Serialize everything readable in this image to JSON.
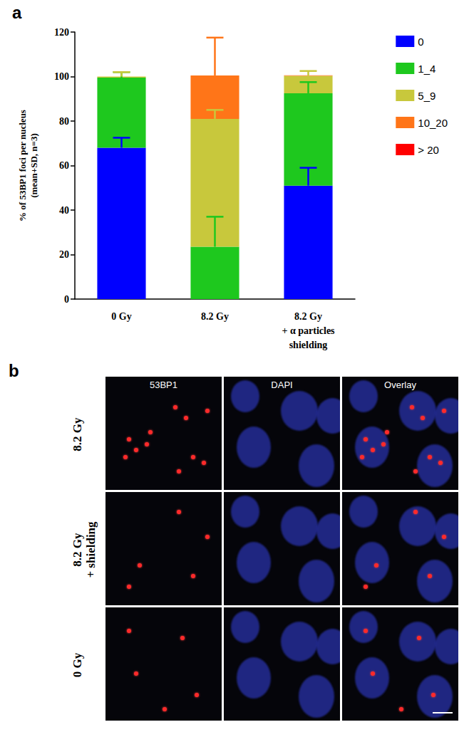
{
  "chart_data": {
    "type": "bar",
    "title": "a",
    "stacked": true,
    "y_label": "% of 53BP1 foci per nucleus\n(mean+SD, n=3)",
    "categories": [
      "0 Gy",
      "8.2 Gy",
      "8.2 Gy\n+ α particles\nshielding"
    ],
    "ylim": [
      0,
      120
    ],
    "yticks": [
      0,
      20,
      40,
      60,
      80,
      100,
      120
    ],
    "grid": false,
    "legend": "right",
    "series": [
      {
        "name": "0",
        "color": "#0000ff",
        "values": [
          68,
          0,
          51
        ],
        "errors": [
          4.5,
          null,
          8
        ]
      },
      {
        "name": "1_4",
        "color": "#1ec81e",
        "values": [
          31.5,
          23.5,
          41.5
        ],
        "errors": [
          2.5,
          13.5,
          5
        ]
      },
      {
        "name": "5_9",
        "color": "#c8c83c",
        "values": [
          0.5,
          57.5,
          7.8
        ],
        "errors": [
          2,
          4,
          2.2
        ]
      },
      {
        "name": "10_20",
        "color": "#ff7518",
        "values": [
          0,
          19.5,
          0.3
        ],
        "errors": [
          null,
          17,
          null
        ]
      },
      {
        "name": "> 20",
        "color": "#ff0000",
        "values": [
          0,
          0,
          0
        ],
        "errors": [
          null,
          null,
          null
        ]
      }
    ]
  },
  "panel_b": {
    "label": "b",
    "columns": [
      "53BP1",
      "DAPI",
      "Overlay"
    ],
    "rows": [
      "8.2 Gy",
      "8.2 Gy\n+ shielding",
      "0 Gy"
    ]
  }
}
